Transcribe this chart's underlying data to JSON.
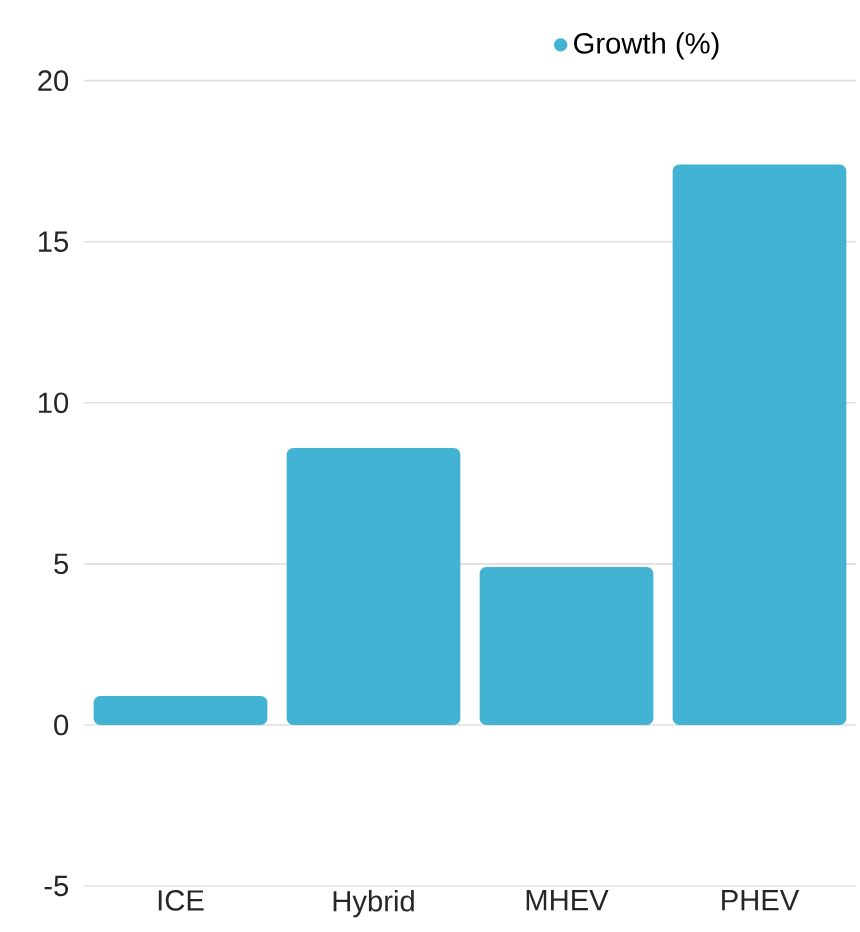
{
  "chart_data": {
    "type": "bar",
    "categories": [
      "ICE",
      "Hybrid",
      "MHEV",
      "PHEV"
    ],
    "series": [
      {
        "name": "Growth (%)",
        "color": "#42b3d2",
        "values": [
          0.9,
          8.6,
          4.9,
          17.4
        ]
      }
    ],
    "ylim": [
      -5,
      20
    ],
    "yticks": [
      -5,
      0,
      5,
      10,
      15,
      20
    ],
    "grid": "y",
    "legend": "top"
  }
}
